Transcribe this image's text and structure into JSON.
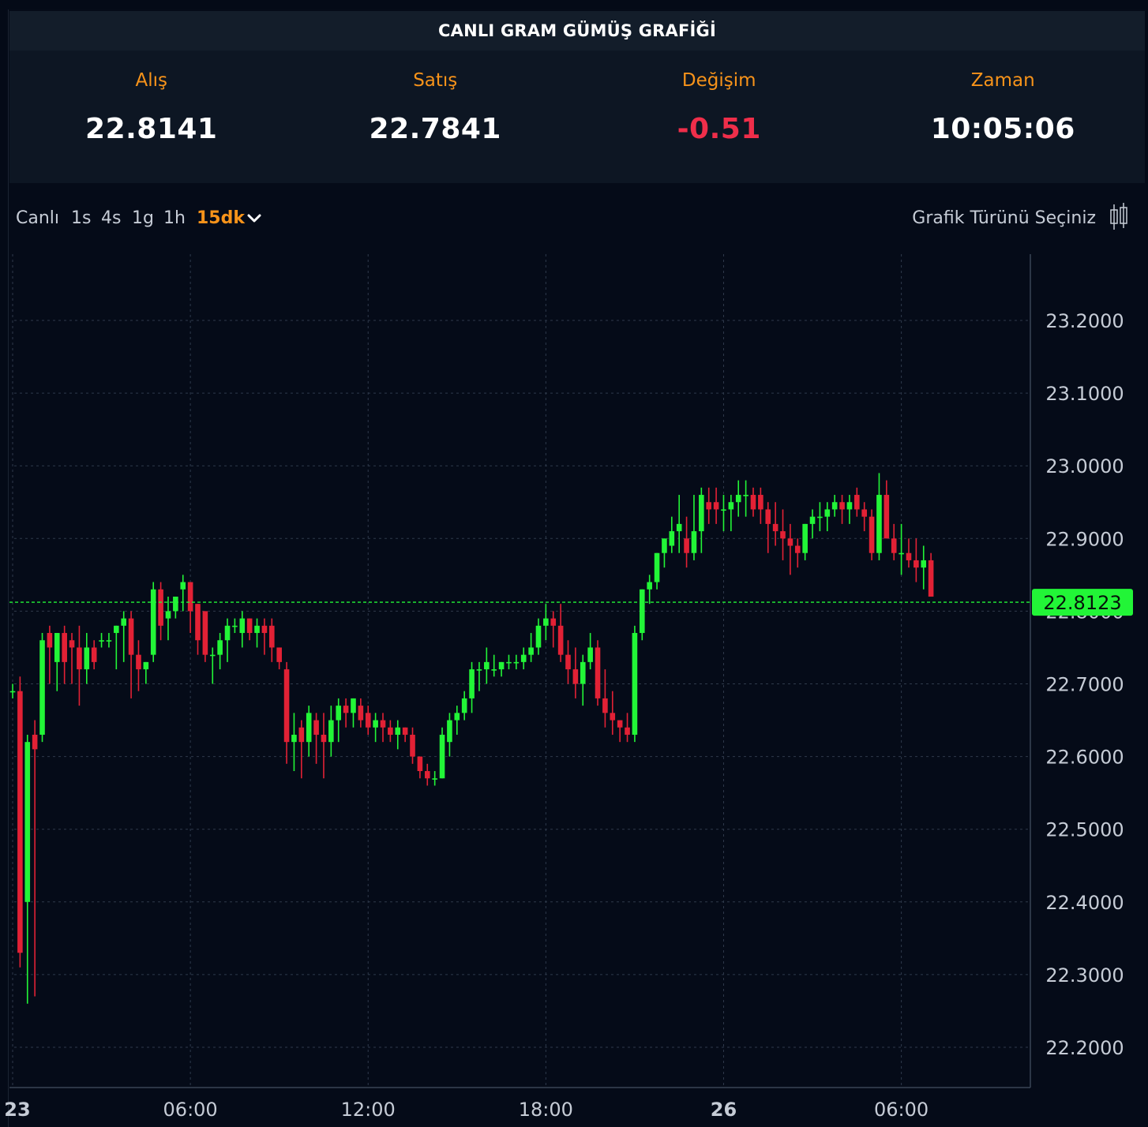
{
  "header": {
    "title": "CANLI GRAM GÜMÜŞ GRAFİĞİ"
  },
  "quotes": [
    {
      "label": "Alış",
      "value": "22.8141"
    },
    {
      "label": "Satış",
      "value": "22.7841"
    },
    {
      "label": "Değişim",
      "value": "-0.51"
    },
    {
      "label": "Zaman",
      "value": "10:05:06"
    }
  ],
  "toolbar": {
    "timeframes": [
      "Canlı",
      "1s",
      "4s",
      "1g",
      "1h",
      "15dk"
    ],
    "active_timeframe": "15dk",
    "chart_type_label": "Grafik Türünü Seçiniz"
  },
  "colors": {
    "accent": "#f7931a",
    "up": "#22f537",
    "down": "#e22135",
    "negative": "#ef2e4a",
    "last_price_bg": "#22f537"
  },
  "icons": {
    "timeframe_dropdown": "chevron-down-icon",
    "chart_type": "candlestick-icon"
  },
  "chart_data": {
    "type": "candlestick",
    "title": "",
    "xlabel": "",
    "ylabel": "",
    "ylim": [
      22.1,
      23.29
    ],
    "grid": true,
    "y_ticks": [
      "22.2000",
      "22.3000",
      "22.4000",
      "22.5000",
      "22.6000",
      "22.7000",
      "22.8000",
      "22.9000",
      "23.0000",
      "23.1000",
      "23.2000"
    ],
    "x_ticks": [
      {
        "label": "23",
        "index": 0,
        "bold": true
      },
      {
        "label": "06:00",
        "index": 24,
        "bold": false
      },
      {
        "label": "12:00",
        "index": 48,
        "bold": false
      },
      {
        "label": "18:00",
        "index": 72,
        "bold": false
      },
      {
        "label": "26",
        "index": 96,
        "bold": true
      },
      {
        "label": "06:00",
        "index": 120,
        "bold": false
      }
    ],
    "last_price": "22.8123",
    "last_price_value": 22.8123,
    "ohlc": [
      [
        22.69,
        22.7,
        22.68,
        22.69
      ],
      [
        22.69,
        22.71,
        22.31,
        22.33
      ],
      [
        22.4,
        22.63,
        22.26,
        22.62
      ],
      [
        22.63,
        22.65,
        22.27,
        22.61
      ],
      [
        22.63,
        22.77,
        22.62,
        22.76
      ],
      [
        22.77,
        22.78,
        22.7,
        22.75
      ],
      [
        22.73,
        22.77,
        22.69,
        22.77
      ],
      [
        22.77,
        22.78,
        22.7,
        22.73
      ],
      [
        22.76,
        22.77,
        22.7,
        22.75
      ],
      [
        22.75,
        22.78,
        22.67,
        22.72
      ],
      [
        22.72,
        22.77,
        22.7,
        22.75
      ],
      [
        22.75,
        22.76,
        22.72,
        22.73
      ],
      [
        22.76,
        22.77,
        22.75,
        22.76
      ],
      [
        22.76,
        22.77,
        22.75,
        22.76
      ],
      [
        22.77,
        22.78,
        22.72,
        22.78
      ],
      [
        22.78,
        22.8,
        22.73,
        22.79
      ],
      [
        22.79,
        22.8,
        22.68,
        22.74
      ],
      [
        22.74,
        22.76,
        22.69,
        22.72
      ],
      [
        22.72,
        22.73,
        22.7,
        22.73
      ],
      [
        22.74,
        22.84,
        22.73,
        22.83
      ],
      [
        22.83,
        22.84,
        22.76,
        22.78
      ],
      [
        22.79,
        22.82,
        22.76,
        22.8
      ],
      [
        22.8,
        22.82,
        22.79,
        22.82
      ],
      [
        22.83,
        22.85,
        22.8,
        22.84
      ],
      [
        22.84,
        22.84,
        22.77,
        22.8
      ],
      [
        22.81,
        22.81,
        22.74,
        22.76
      ],
      [
        22.8,
        22.8,
        22.73,
        22.74
      ],
      [
        22.74,
        22.75,
        22.7,
        22.74
      ],
      [
        22.74,
        22.77,
        22.72,
        22.76
      ],
      [
        22.76,
        22.79,
        22.73,
        22.78
      ],
      [
        22.78,
        22.79,
        22.77,
        22.78
      ],
      [
        22.77,
        22.8,
        22.75,
        22.79
      ],
      [
        22.79,
        22.79,
        22.76,
        22.77
      ],
      [
        22.77,
        22.79,
        22.75,
        22.78
      ],
      [
        22.78,
        22.79,
        22.74,
        22.77
      ],
      [
        22.78,
        22.79,
        22.73,
        22.75
      ],
      [
        22.75,
        22.75,
        22.72,
        22.73
      ],
      [
        22.72,
        22.73,
        22.59,
        22.62
      ],
      [
        22.62,
        22.66,
        22.58,
        22.63
      ],
      [
        22.64,
        22.65,
        22.57,
        22.62
      ],
      [
        22.62,
        22.67,
        22.6,
        22.66
      ],
      [
        22.65,
        22.66,
        22.59,
        22.63
      ],
      [
        22.63,
        22.66,
        22.57,
        22.62
      ],
      [
        22.62,
        22.67,
        22.6,
        22.65
      ],
      [
        22.65,
        22.68,
        22.62,
        22.67
      ],
      [
        22.67,
        22.68,
        22.64,
        22.66
      ],
      [
        22.66,
        22.68,
        22.64,
        22.68
      ],
      [
        22.67,
        22.68,
        22.64,
        22.65
      ],
      [
        22.66,
        22.67,
        22.63,
        22.64
      ],
      [
        22.64,
        22.66,
        22.62,
        22.65
      ],
      [
        22.65,
        22.66,
        22.62,
        22.64
      ],
      [
        22.64,
        22.65,
        22.62,
        22.63
      ],
      [
        22.63,
        22.65,
        22.61,
        22.64
      ],
      [
        22.64,
        22.64,
        22.62,
        22.63
      ],
      [
        22.63,
        22.64,
        22.59,
        22.6
      ],
      [
        22.6,
        22.6,
        22.57,
        22.58
      ],
      [
        22.58,
        22.59,
        22.56,
        22.57
      ],
      [
        22.57,
        22.58,
        22.56,
        22.57
      ],
      [
        22.57,
        22.64,
        22.57,
        22.63
      ],
      [
        22.62,
        22.66,
        22.6,
        22.65
      ],
      [
        22.65,
        22.67,
        22.63,
        22.66
      ],
      [
        22.66,
        22.69,
        22.65,
        22.68
      ],
      [
        22.68,
        22.73,
        22.66,
        22.72
      ],
      [
        22.72,
        22.73,
        22.69,
        22.72
      ],
      [
        22.72,
        22.75,
        22.7,
        22.73
      ],
      [
        22.72,
        22.74,
        22.71,
        22.72
      ],
      [
        22.72,
        22.73,
        22.71,
        22.73
      ],
      [
        22.73,
        22.74,
        22.72,
        22.73
      ],
      [
        22.73,
        22.74,
        22.72,
        22.73
      ],
      [
        22.73,
        22.75,
        22.72,
        22.74
      ],
      [
        22.74,
        22.77,
        22.73,
        22.75
      ],
      [
        22.75,
        22.79,
        22.74,
        22.78
      ],
      [
        22.78,
        22.81,
        22.76,
        22.79
      ],
      [
        22.79,
        22.8,
        22.75,
        22.78
      ],
      [
        22.78,
        22.81,
        22.73,
        22.74
      ],
      [
        22.74,
        22.76,
        22.7,
        22.72
      ],
      [
        22.72,
        22.75,
        22.68,
        22.7
      ],
      [
        22.7,
        22.74,
        22.67,
        22.73
      ],
      [
        22.73,
        22.77,
        22.72,
        22.75
      ],
      [
        22.75,
        22.76,
        22.67,
        22.68
      ],
      [
        22.68,
        22.72,
        22.64,
        22.66
      ],
      [
        22.66,
        22.69,
        22.63,
        22.65
      ],
      [
        22.65,
        22.65,
        22.62,
        22.64
      ],
      [
        22.64,
        22.66,
        22.62,
        22.63
      ],
      [
        22.63,
        22.78,
        22.62,
        22.77
      ],
      [
        22.77,
        22.83,
        22.76,
        22.83
      ],
      [
        22.83,
        22.85,
        22.81,
        22.84
      ],
      [
        22.84,
        22.88,
        22.83,
        22.88
      ],
      [
        22.88,
        22.9,
        22.86,
        22.9
      ],
      [
        22.89,
        22.93,
        22.88,
        22.91
      ],
      [
        22.91,
        22.96,
        22.88,
        22.92
      ],
      [
        22.9,
        22.93,
        22.86,
        22.88
      ],
      [
        22.88,
        22.96,
        22.87,
        22.91
      ],
      [
        22.91,
        22.97,
        22.88,
        22.96
      ],
      [
        22.95,
        22.97,
        22.92,
        22.94
      ],
      [
        22.95,
        22.97,
        22.92,
        22.94
      ],
      [
        22.94,
        22.96,
        22.91,
        22.94
      ],
      [
        22.94,
        22.96,
        22.91,
        22.95
      ],
      [
        22.95,
        22.98,
        22.93,
        22.96
      ],
      [
        22.96,
        22.98,
        22.93,
        22.96
      ],
      [
        22.96,
        22.97,
        22.93,
        22.94
      ],
      [
        22.96,
        22.97,
        22.92,
        22.94
      ],
      [
        22.94,
        22.95,
        22.88,
        22.92
      ],
      [
        22.92,
        22.95,
        22.89,
        22.91
      ],
      [
        22.91,
        22.94,
        22.87,
        22.9
      ],
      [
        22.9,
        22.92,
        22.85,
        22.89
      ],
      [
        22.89,
        22.9,
        22.86,
        22.88
      ],
      [
        22.88,
        22.92,
        22.87,
        22.92
      ],
      [
        22.92,
        22.94,
        22.9,
        22.93
      ],
      [
        22.93,
        22.95,
        22.91,
        22.93
      ],
      [
        22.93,
        22.95,
        22.91,
        22.94
      ],
      [
        22.94,
        22.96,
        22.93,
        22.95
      ],
      [
        22.95,
        22.96,
        22.92,
        22.94
      ],
      [
        22.94,
        22.96,
        22.92,
        22.95
      ],
      [
        22.96,
        22.97,
        22.93,
        22.94
      ],
      [
        22.94,
        22.95,
        22.91,
        22.93
      ],
      [
        22.93,
        22.94,
        22.87,
        22.88
      ],
      [
        22.88,
        22.99,
        22.87,
        22.96
      ],
      [
        22.96,
        22.98,
        22.9,
        22.9
      ],
      [
        22.9,
        22.92,
        22.87,
        22.88
      ],
      [
        22.88,
        22.92,
        22.85,
        22.88
      ],
      [
        22.88,
        22.9,
        22.86,
        22.87
      ],
      [
        22.87,
        22.9,
        22.84,
        22.86
      ],
      [
        22.86,
        22.89,
        22.83,
        22.87
      ],
      [
        22.87,
        22.88,
        22.82,
        22.82
      ]
    ]
  }
}
